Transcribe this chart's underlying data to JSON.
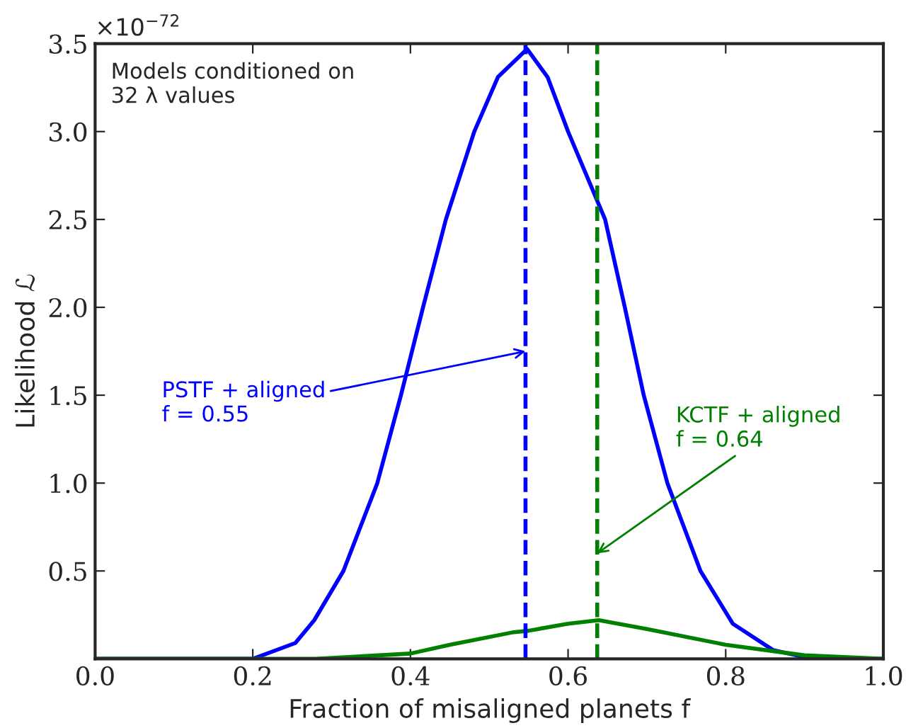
{
  "chart_data": {
    "type": "line",
    "xlabel": "Fraction of misaligned planets f",
    "ylabel": "Likelihood ℒ",
    "xlim": [
      0.0,
      1.0
    ],
    "ylim": [
      0.0,
      3.5
    ],
    "xticks": [
      {
        "value": 0.0,
        "label": "0.0"
      },
      {
        "value": 0.2,
        "label": "0.2"
      },
      {
        "value": 0.4,
        "label": "0.4"
      },
      {
        "value": 0.6,
        "label": "0.6"
      },
      {
        "value": 0.8,
        "label": "0.8"
      },
      {
        "value": 1.0,
        "label": "1.0"
      }
    ],
    "yticks": [
      {
        "value": 0.5,
        "label": "0.5"
      },
      {
        "value": 1.0,
        "label": "1.0"
      },
      {
        "value": 1.5,
        "label": "1.5"
      },
      {
        "value": 2.0,
        "label": "2.0"
      },
      {
        "value": 2.5,
        "label": "2.5"
      },
      {
        "value": 3.0,
        "label": "3.0"
      },
      {
        "value": 3.5,
        "label": "3.5"
      }
    ],
    "series": [
      {
        "color": "#0000ff",
        "x": [
          0.0,
          0.2,
          0.254,
          0.278,
          0.315,
          0.358,
          0.388,
          0.416,
          0.445,
          0.481,
          0.511,
          0.548,
          0.574,
          0.6,
          0.647,
          0.672,
          0.696,
          0.726,
          0.768,
          0.809,
          0.86,
          0.91,
          1.0
        ],
        "values": [
          0.0,
          0.0,
          0.09,
          0.22,
          0.5,
          1.0,
          1.5,
          2.0,
          2.5,
          3.0,
          3.31,
          3.47,
          3.31,
          3.0,
          2.5,
          2.0,
          1.5,
          1.0,
          0.5,
          0.2,
          0.05,
          0.0,
          0.0
        ]
      },
      {
        "color": "#008000",
        "x": [
          0.0,
          0.28,
          0.4,
          0.45,
          0.529,
          0.55,
          0.6,
          0.639,
          0.7,
          0.8,
          0.9,
          1.0
        ],
        "values": [
          0.0,
          0.0,
          0.03,
          0.08,
          0.15,
          0.16,
          0.2,
          0.22,
          0.17,
          0.08,
          0.02,
          0.0
        ]
      }
    ],
    "ref_lines": [
      {
        "axis": "x",
        "value": 0.546,
        "color": "#0000ff",
        "line_style": "dashed"
      },
      {
        "axis": "x",
        "value": 0.637,
        "color": "#008000",
        "line_style": "dashed"
      }
    ],
    "annotations": [
      "Models conditioned on\n32 λ values",
      "×10$^{−72}$",
      {
        "text": "PSTF + aligned\nf = 0.55",
        "x": 0.546,
        "y": 1.75
      },
      {
        "text": "KCTF + aligned\nf = 0.64",
        "x": 0.637,
        "y": 0.6
      }
    ],
    "grid": false,
    "legend": false,
    "line_style": "solid",
    "marker": "none"
  }
}
